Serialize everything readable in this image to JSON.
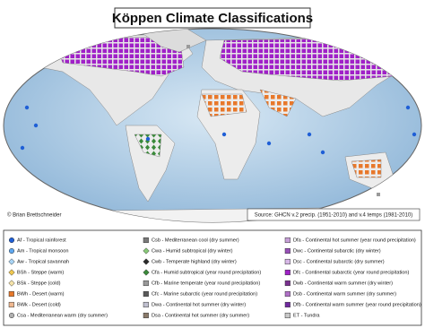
{
  "map": {
    "title": "Köppen Climate Classifications",
    "credit": "© Brian Brettschneider",
    "source": "Source: GHCN v.2 precip. (1951-2010) and v.4 temps (1981-2010)",
    "legend": [
      {
        "label": "Af - Tropical rainforest",
        "color": "#1f5fd6",
        "shape": "circle"
      },
      {
        "label": "Am - Tropical monsoon",
        "color": "#5fa8f0",
        "shape": "circle"
      },
      {
        "label": "Aw - Tropical savannah",
        "color": "#a8d4f5",
        "shape": "diamond"
      },
      {
        "label": "BSh - Steppe (warm)",
        "color": "#f0c850",
        "shape": "diamond"
      },
      {
        "label": "BSk - Steppe (cold)",
        "color": "#f5e2a8",
        "shape": "diamond"
      },
      {
        "label": "BWh - Desert (warm)",
        "color": "#e8782a",
        "shape": "square"
      },
      {
        "label": "BWk - Desert (cold)",
        "color": "#f0b890",
        "shape": "square"
      },
      {
        "label": "Csa - Mediterranean warm (dry summer)",
        "color": "#b0b0b0",
        "shape": "circle"
      },
      {
        "label": "Csb - Mediterranean cool (dry summer)",
        "color": "#7a7a7a",
        "shape": "square"
      },
      {
        "label": "Cwa - Humid subtropical (dry winter)",
        "color": "#88c878",
        "shape": "diamond"
      },
      {
        "label": "Cwb - Temperate highland (dry winter)",
        "color": "#2a2a2a",
        "shape": "diamond"
      },
      {
        "label": "Cfa - Humid subtropical (year round precipitation)",
        "color": "#3a8a3a",
        "shape": "diamond"
      },
      {
        "label": "Cfb - Marine temperate (year round precipitation)",
        "color": "#9a9a9a",
        "shape": "square"
      },
      {
        "label": "Cfc - Marine subarctic (year round precipitation)",
        "color": "#5a5a5a",
        "shape": "square"
      },
      {
        "label": "Dwa - Continental hot summer (dry winter)",
        "color": "#c0c0d0",
        "shape": "square"
      },
      {
        "label": "Dsa - Continental hot summer (dry summer)",
        "color": "#8a7a6a",
        "shape": "square"
      },
      {
        "label": "Dfa - Continental hot summer (year round precipitation)",
        "color": "#c8a0d8",
        "shape": "square"
      },
      {
        "label": "Dwc - Continental subarctic (dry winter)",
        "color": "#9850b8",
        "shape": "square"
      },
      {
        "label": "Dsc - Continental subarctic (dry summer)",
        "color": "#d8b8e8",
        "shape": "square"
      },
      {
        "label": "Dfc - Continental subarctic (year round precipitation)",
        "color": "#a020c8",
        "shape": "square"
      },
      {
        "label": "Dwb - Continental warm summer (dry winter)",
        "color": "#7a3090",
        "shape": "square"
      },
      {
        "label": "Dsb - Continental warm summer (dry summer)",
        "color": "#b070c8",
        "shape": "square"
      },
      {
        "label": "Dfb - Continental warm summer (year round precipitation)",
        "color": "#7028a0",
        "shape": "square"
      },
      {
        "label": "ET - Tundra",
        "color": "#c8c8c8",
        "shape": "square"
      }
    ]
  }
}
